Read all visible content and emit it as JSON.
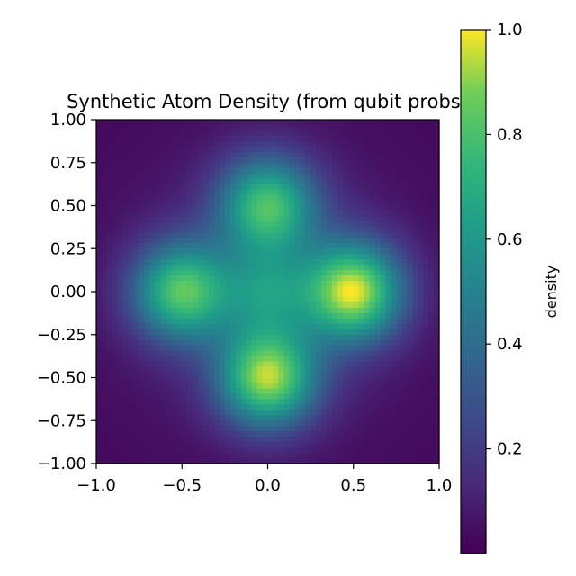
{
  "chart_data": {
    "type": "heatmap",
    "title": "Synthetic Atom Density (from qubit probs)",
    "xlabel": "",
    "ylabel": "",
    "xlim": [
      -1.0,
      1.0
    ],
    "ylim": [
      -1.0,
      1.0
    ],
    "x_ticks": [
      -1.0,
      -0.5,
      0.0,
      0.5,
      1.0
    ],
    "x_tick_labels": [
      "−1.0",
      "−0.5",
      "0.0",
      "0.5",
      "1.0"
    ],
    "y_ticks": [
      1.0,
      0.75,
      0.5,
      0.25,
      0.0,
      -0.25,
      -0.5,
      -0.75,
      -1.0
    ],
    "y_tick_labels": [
      "1.00",
      "0.75",
      "0.50",
      "0.25",
      "0.00",
      "−0.25",
      "−0.50",
      "−0.75",
      "−1.00"
    ],
    "grid": false,
    "colormap": "viridis",
    "grid_resolution": 64,
    "peaks": [
      {
        "x": 0.5,
        "y": 0.0,
        "value": 1.0
      },
      {
        "x": 0.0,
        "y": -0.5,
        "value": 0.95
      },
      {
        "x": -0.5,
        "y": 0.0,
        "value": 0.83
      },
      {
        "x": 0.0,
        "y": 0.5,
        "value": 0.8
      }
    ],
    "center_value": 0.58,
    "corner_value": 0.02,
    "colorbar": {
      "label": "density",
      "range": [
        0.0,
        1.0
      ],
      "ticks": [
        1.0,
        0.8,
        0.6,
        0.4,
        0.2
      ],
      "tick_labels": [
        "1.0",
        "0.8",
        "0.6",
        "0.4",
        "0.2"
      ]
    }
  }
}
